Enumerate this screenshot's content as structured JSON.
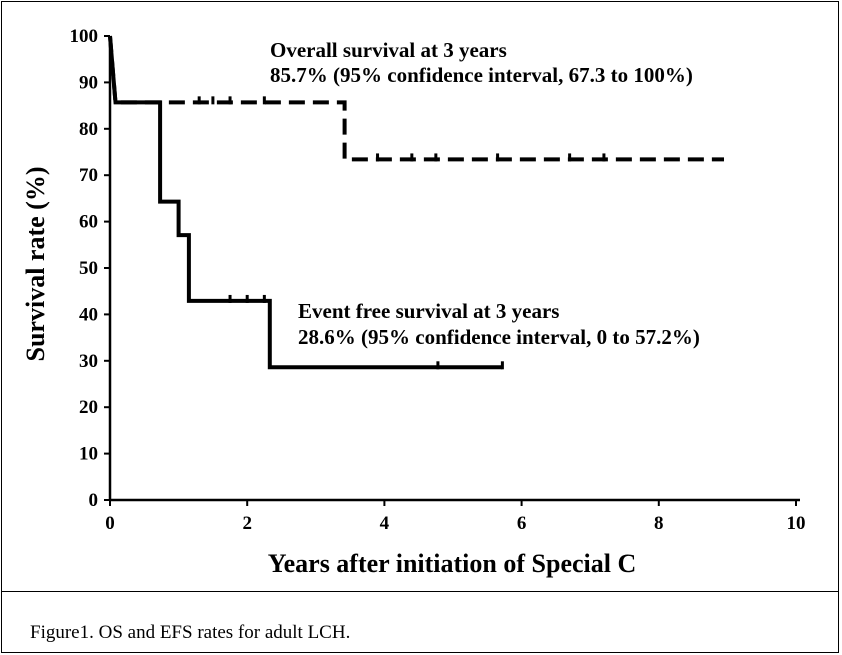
{
  "chart_data": {
    "type": "line",
    "xlabel": "Years after initiation of Special C",
    "ylabel": "Survival rate (%)",
    "xlim": [
      0,
      10
    ],
    "ylim": [
      0,
      100
    ],
    "x_ticks": [
      0,
      2,
      4,
      6,
      8,
      10
    ],
    "y_ticks": [
      0,
      10,
      20,
      30,
      40,
      50,
      60,
      70,
      80,
      90,
      100
    ],
    "grid": false,
    "series": [
      {
        "name": "Overall survival",
        "style": "dashed",
        "steps": [
          [
            0,
            100
          ],
          [
            0.04,
            92.9
          ],
          [
            0.08,
            85.7
          ],
          [
            3.42,
            85.7
          ],
          [
            3.42,
            73.4
          ],
          [
            8.95,
            73.4
          ]
        ],
        "censored": [
          [
            1.3,
            85.7
          ],
          [
            1.5,
            85.7
          ],
          [
            1.75,
            85.7
          ],
          [
            2.25,
            85.7
          ],
          [
            3.9,
            73.4
          ],
          [
            4.4,
            73.4
          ],
          [
            4.75,
            73.4
          ],
          [
            5.65,
            73.4
          ],
          [
            6.7,
            73.4
          ],
          [
            7.2,
            73.4
          ]
        ]
      },
      {
        "name": "Event free survival",
        "style": "solid",
        "steps": [
          [
            0,
            100
          ],
          [
            0.04,
            92.9
          ],
          [
            0.08,
            85.7
          ],
          [
            0.73,
            85.7
          ],
          [
            0.73,
            64.3
          ],
          [
            1.0,
            64.3
          ],
          [
            1.0,
            57.1
          ],
          [
            1.15,
            57.1
          ],
          [
            1.15,
            42.9
          ],
          [
            2.33,
            42.9
          ],
          [
            2.33,
            28.6
          ],
          [
            5.72,
            28.6
          ]
        ],
        "censored": [
          [
            1.75,
            42.9
          ],
          [
            2.0,
            42.9
          ],
          [
            2.25,
            42.9
          ],
          [
            4.78,
            28.6
          ],
          [
            5.72,
            28.6
          ]
        ]
      }
    ],
    "annotations": [
      {
        "line1": "Overall survival at 3 years",
        "line2": "85.7% (95% confidence interval, 67.3 to 100%)"
      },
      {
        "line1": "Event free survival at 3 years",
        "line2": "28.6% (95% confidence interval, 0 to 57.2%)"
      }
    ]
  },
  "caption": "Figure1. OS and EFS rates for adult LCH."
}
